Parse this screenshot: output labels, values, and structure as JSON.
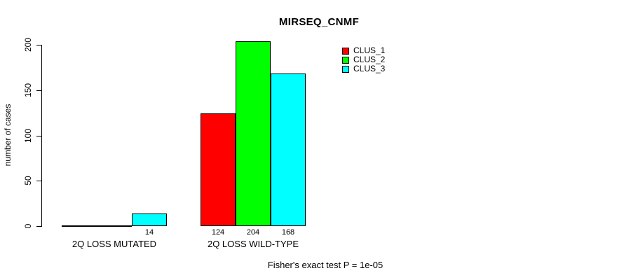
{
  "chart_data": {
    "type": "bar",
    "title": "MIRSEQ_CNMF",
    "ylabel": "number of cases",
    "xlabel": "",
    "ylim": [
      0,
      200
    ],
    "yticks": [
      0,
      50,
      100,
      150,
      200
    ],
    "categories": [
      "2Q LOSS MUTATED",
      "2Q LOSS WILD-TYPE"
    ],
    "series": [
      {
        "name": "CLUS_1",
        "color": "#ff0000",
        "values": [
          0,
          124
        ]
      },
      {
        "name": "CLUS_2",
        "color": "#00ff00",
        "values": [
          0,
          204
        ]
      },
      {
        "name": "CLUS_3",
        "color": "#00ffff",
        "values": [
          14,
          168
        ]
      }
    ],
    "bar_value_labels_shown": [
      "14",
      "124",
      "204",
      "168"
    ],
    "annotation": "Fisher's exact test P = 1e-05",
    "legend_position": "top-right-inside",
    "grid": false,
    "background": "#ffffff",
    "text_color": "#000000"
  }
}
